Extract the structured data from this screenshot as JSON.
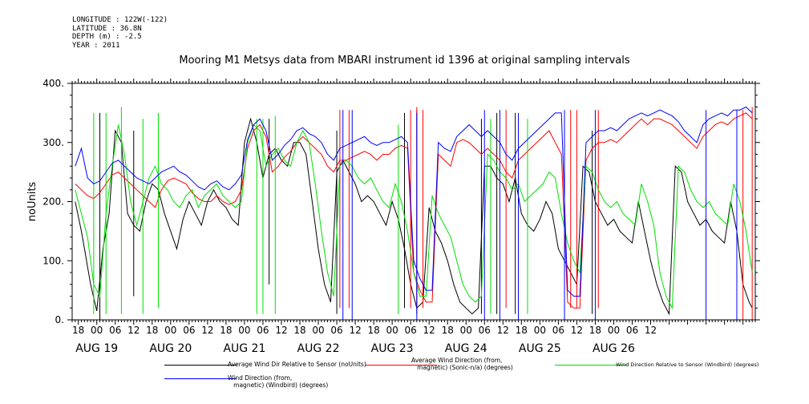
{
  "meta": {
    "longitude": "LONGITUDE : 122W(-122)",
    "latitude": "LATITUDE : 36.8N",
    "depth": "DEPTH (m) : -2.5",
    "year": "YEAR : 2011"
  },
  "chart_data": {
    "type": "line",
    "title": "Mooring M1 Metsys data from MBARI instrument id 1396 at original sampling intervals",
    "ylabel": "noUnits",
    "xlabel": "",
    "ylim": [
      0,
      400
    ],
    "yticks": [
      "0.",
      "100.",
      "200.",
      "300.",
      "400."
    ],
    "xlim_hours": [
      -8,
      214
    ],
    "hour_tick_labels": [
      "18",
      "00",
      "06",
      "12",
      "18",
      "00",
      "06",
      "12",
      "18",
      "00",
      "06",
      "12",
      "18",
      "00",
      "06",
      "12",
      "18",
      "00",
      "06",
      "12",
      "18",
      "00",
      "06",
      "12",
      "18",
      "00",
      "06",
      "12",
      "18",
      "00",
      "06",
      "12"
    ],
    "day_labels": [
      {
        "label": "AUG 19",
        "hour": 0
      },
      {
        "label": "AUG 20",
        "hour": 24
      },
      {
        "label": "AUG 21",
        "hour": 48
      },
      {
        "label": "AUG 22",
        "hour": 72
      },
      {
        "label": "AUG 23",
        "hour": 96
      },
      {
        "label": "AUG 24",
        "hour": 120
      },
      {
        "label": "AUG 25",
        "hour": 144
      },
      {
        "label": "AUG 26",
        "hour": 168
      }
    ],
    "series": [
      {
        "name": "Average Wind Dir Relative to Sensor (noUnits)",
        "color": "#000000",
        "x": [
          -7,
          -5,
          -4,
          -2,
          0,
          2,
          4,
          6,
          8,
          10,
          12,
          14,
          16,
          18,
          20,
          22,
          24,
          26,
          28,
          30,
          32,
          34,
          36,
          38,
          40,
          42,
          44,
          46,
          48,
          50,
          52,
          54,
          56,
          58,
          60,
          62,
          64,
          66,
          68,
          70,
          72,
          74,
          76,
          78,
          80,
          82,
          84,
          86,
          88,
          90,
          92,
          94,
          96,
          98,
          100,
          102,
          104,
          106,
          108,
          110,
          112,
          114,
          116,
          118,
          120,
          122,
          124,
          126,
          128,
          130,
          132,
          134,
          136,
          138,
          140,
          142,
          144,
          146,
          148,
          150,
          152,
          154,
          156,
          158,
          160,
          162,
          164,
          166,
          168,
          170,
          172,
          174,
          176,
          178,
          180,
          182,
          184,
          186,
          188,
          190,
          192,
          194,
          196,
          198,
          200,
          202,
          204,
          206,
          208,
          210,
          212,
          213
        ],
        "y": [
          200,
          150,
          120,
          60,
          15,
          120,
          180,
          320,
          300,
          180,
          160,
          150,
          200,
          230,
          220,
          180,
          150,
          120,
          170,
          200,
          180,
          160,
          200,
          220,
          200,
          190,
          170,
          160,
          300,
          340,
          300,
          240,
          280,
          290,
          270,
          260,
          300,
          300,
          280,
          200,
          120,
          60,
          30,
          250,
          270,
          250,
          230,
          200,
          210,
          200,
          180,
          160,
          200,
          170,
          120,
          60,
          20,
          30,
          190,
          150,
          130,
          100,
          60,
          30,
          20,
          10,
          20,
          260,
          260,
          240,
          230,
          200,
          240,
          180,
          160,
          150,
          170,
          200,
          180,
          120,
          100,
          80,
          60,
          260,
          250,
          200,
          180,
          160,
          170,
          150,
          140,
          130,
          200,
          150,
          100,
          60,
          30,
          10,
          260,
          250,
          200,
          180,
          160,
          170,
          150,
          140,
          130,
          200,
          150,
          60,
          30,
          20
        ],
        "spikes": [
          {
            "x": 1,
            "y0": 0,
            "y1": 350
          },
          {
            "x": 12,
            "y0": 40,
            "y1": 320
          },
          {
            "x": 56,
            "y0": 60,
            "y1": 340
          },
          {
            "x": 78,
            "y0": 10,
            "y1": 320
          },
          {
            "x": 100,
            "y0": 20,
            "y1": 350
          },
          {
            "x": 104,
            "y0": 10,
            "y1": 355
          },
          {
            "x": 125,
            "y0": 10,
            "y1": 340
          },
          {
            "x": 130,
            "y0": 10,
            "y1": 350
          },
          {
            "x": 136,
            "y0": 10,
            "y1": 350
          },
          {
            "x": 161,
            "y0": 10,
            "y1": 320
          }
        ]
      },
      {
        "name": "Average Wind Direction (from, magnetic) (Sonic-n/a) (degrees)",
        "color": "#ff0000",
        "x": [
          -7,
          -5,
          -3,
          -1,
          1,
          3,
          5,
          7,
          9,
          11,
          13,
          15,
          17,
          19,
          21,
          23,
          25,
          27,
          29,
          31,
          33,
          35,
          37,
          39,
          41,
          43,
          45,
          47,
          49,
          51,
          53,
          55,
          57,
          59,
          61,
          63,
          65,
          67,
          69,
          71,
          73,
          75,
          77,
          79,
          81,
          83,
          85,
          87,
          89,
          91,
          93,
          95,
          97,
          99,
          101,
          103,
          105,
          107,
          109,
          111,
          113,
          115,
          117,
          119,
          121,
          123,
          125,
          127,
          129,
          131,
          133,
          135,
          137,
          139,
          141,
          143,
          145,
          147,
          149,
          151,
          153,
          155,
          157,
          159,
          161,
          163,
          165,
          167,
          169,
          171,
          173,
          175,
          177,
          179,
          181,
          183,
          185,
          187,
          189,
          191,
          193,
          195,
          197,
          199,
          201,
          203,
          205,
          207,
          209,
          211,
          213
        ],
        "y": [
          230,
          220,
          210,
          205,
          215,
          230,
          245,
          250,
          240,
          230,
          220,
          210,
          200,
          190,
          220,
          235,
          240,
          235,
          230,
          215,
          205,
          200,
          200,
          210,
          200,
          195,
          200,
          220,
          290,
          320,
          330,
          310,
          250,
          260,
          275,
          285,
          300,
          310,
          300,
          290,
          280,
          260,
          250,
          270,
          270,
          275,
          280,
          285,
          280,
          270,
          280,
          280,
          290,
          295,
          290,
          80,
          50,
          30,
          30,
          280,
          270,
          260,
          300,
          305,
          300,
          290,
          280,
          290,
          280,
          270,
          250,
          240,
          270,
          280,
          290,
          300,
          310,
          320,
          300,
          280,
          30,
          20,
          20,
          270,
          290,
          300,
          300,
          305,
          300,
          310,
          320,
          330,
          340,
          330,
          340,
          340,
          335,
          330,
          320,
          310,
          300,
          290,
          310,
          320,
          330,
          335,
          330,
          340,
          345,
          350,
          340
        ],
        "spikes": [
          {
            "x": 79,
            "y0": 20,
            "y1": 355
          },
          {
            "x": 82,
            "y0": 20,
            "y1": 355
          },
          {
            "x": 102,
            "y0": 20,
            "y1": 355
          },
          {
            "x": 104,
            "y0": 20,
            "y1": 360
          },
          {
            "x": 106,
            "y0": 20,
            "y1": 355
          },
          {
            "x": 133,
            "y0": 20,
            "y1": 355
          },
          {
            "x": 154,
            "y0": 20,
            "y1": 355
          },
          {
            "x": 156,
            "y0": 20,
            "y1": 355
          },
          {
            "x": 163,
            "y0": 20,
            "y1": 355
          },
          {
            "x": 210,
            "y0": 0,
            "y1": 355
          },
          {
            "x": 213,
            "y0": 0,
            "y1": 360
          }
        ]
      },
      {
        "name": "Wind Direction Relative to Sensor (Windbird) (degrees)",
        "color": "#00e000",
        "x": [
          -7,
          -5,
          -3,
          -1,
          1,
          3,
          5,
          7,
          9,
          11,
          13,
          15,
          17,
          19,
          21,
          23,
          25,
          27,
          29,
          31,
          33,
          35,
          37,
          39,
          41,
          43,
          45,
          47,
          49,
          51,
          53,
          55,
          57,
          59,
          61,
          63,
          65,
          67,
          69,
          71,
          73,
          75,
          77,
          79,
          81,
          83,
          85,
          87,
          89,
          91,
          93,
          95,
          97,
          99,
          101,
          103,
          105,
          107,
          109,
          111,
          113,
          115,
          117,
          119,
          121,
          123,
          125,
          127,
          129,
          131,
          133,
          135,
          137,
          139,
          141,
          143,
          145,
          147,
          149,
          151,
          153,
          155,
          157,
          159,
          161,
          163,
          165,
          167,
          169,
          171,
          173,
          175,
          177,
          179,
          181,
          183,
          185,
          187,
          189,
          191,
          193,
          195,
          197,
          199,
          201,
          203,
          205,
          207,
          209,
          211,
          213
        ],
        "y": [
          220,
          180,
          140,
          60,
          40,
          180,
          260,
          330,
          280,
          200,
          160,
          200,
          240,
          260,
          230,
          220,
          200,
          190,
          210,
          220,
          190,
          210,
          220,
          230,
          210,
          200,
          190,
          200,
          300,
          330,
          320,
          260,
          280,
          290,
          270,
          260,
          300,
          320,
          300,
          230,
          150,
          80,
          40,
          260,
          270,
          260,
          240,
          230,
          240,
          220,
          200,
          190,
          230,
          200,
          150,
          80,
          40,
          40,
          210,
          180,
          160,
          140,
          100,
          60,
          40,
          30,
          40,
          280,
          270,
          250,
          240,
          220,
          230,
          200,
          210,
          220,
          230,
          250,
          240,
          180,
          130,
          100,
          80,
          260,
          250,
          220,
          200,
          190,
          200,
          180,
          170,
          160,
          230,
          200,
          160,
          80,
          40,
          20,
          260,
          250,
          220,
          200,
          190,
          200,
          180,
          170,
          160,
          230,
          200,
          150,
          80
        ],
        "spikes": [
          {
            "x": -1,
            "y0": 10,
            "y1": 350
          },
          {
            "x": 3,
            "y0": 10,
            "y1": 350
          },
          {
            "x": 8,
            "y0": 10,
            "y1": 360
          },
          {
            "x": 15,
            "y0": 10,
            "y1": 340
          },
          {
            "x": 20,
            "y0": 20,
            "y1": 350
          },
          {
            "x": 52,
            "y0": 10,
            "y1": 340
          },
          {
            "x": 54,
            "y0": 10,
            "y1": 340
          },
          {
            "x": 58,
            "y0": 10,
            "y1": 345
          },
          {
            "x": 98,
            "y0": 10,
            "y1": 330
          },
          {
            "x": 128,
            "y0": 10,
            "y1": 340
          },
          {
            "x": 140,
            "y0": 10,
            "y1": 340
          }
        ]
      },
      {
        "name": "Wind Direction (from, magnetic) (Windbird) (degrees)",
        "color": "#0000ff",
        "x": [
          -7,
          -5,
          -3,
          -1,
          1,
          3,
          5,
          7,
          9,
          11,
          13,
          15,
          17,
          19,
          21,
          23,
          25,
          27,
          29,
          31,
          33,
          35,
          37,
          39,
          41,
          43,
          45,
          47,
          49,
          51,
          53,
          55,
          57,
          59,
          61,
          63,
          65,
          67,
          69,
          71,
          73,
          75,
          77,
          79,
          81,
          83,
          85,
          87,
          89,
          91,
          93,
          95,
          97,
          99,
          101,
          103,
          105,
          107,
          109,
          111,
          113,
          115,
          117,
          119,
          121,
          123,
          125,
          127,
          129,
          131,
          133,
          135,
          137,
          139,
          141,
          143,
          145,
          147,
          149,
          151,
          153,
          155,
          157,
          159,
          161,
          163,
          165,
          167,
          169,
          171,
          173,
          175,
          177,
          179,
          181,
          183,
          185,
          187,
          189,
          191,
          193,
          195,
          197,
          199,
          201,
          203,
          205,
          207,
          209,
          211,
          213
        ],
        "y": [
          260,
          290,
          240,
          230,
          235,
          250,
          265,
          270,
          260,
          250,
          240,
          235,
          230,
          240,
          250,
          255,
          260,
          250,
          245,
          235,
          225,
          220,
          230,
          235,
          225,
          220,
          230,
          245,
          305,
          330,
          340,
          320,
          270,
          280,
          295,
          305,
          320,
          325,
          315,
          310,
          300,
          280,
          270,
          290,
          295,
          300,
          305,
          310,
          300,
          295,
          300,
          300,
          305,
          310,
          300,
          100,
          70,
          50,
          50,
          300,
          290,
          285,
          310,
          320,
          330,
          320,
          310,
          320,
          310,
          300,
          280,
          270,
          290,
          300,
          310,
          320,
          330,
          340,
          350,
          350,
          50,
          40,
          40,
          300,
          310,
          320,
          320,
          325,
          320,
          330,
          340,
          345,
          350,
          345,
          350,
          355,
          350,
          345,
          335,
          320,
          310,
          300,
          330,
          340,
          345,
          350,
          345,
          355,
          355,
          360,
          350
        ],
        "spikes": [
          {
            "x": 80,
            "y0": 0,
            "y1": 355
          },
          {
            "x": 83,
            "y0": 0,
            "y1": 355
          },
          {
            "x": 104,
            "y0": 0,
            "y1": 350
          },
          {
            "x": 126,
            "y0": 0,
            "y1": 355
          },
          {
            "x": 131,
            "y0": 0,
            "y1": 355
          },
          {
            "x": 137,
            "y0": 0,
            "y1": 350
          },
          {
            "x": 152,
            "y0": 0,
            "y1": 355
          },
          {
            "x": 162,
            "y0": 0,
            "y1": 355
          },
          {
            "x": 198,
            "y0": 0,
            "y1": 355
          },
          {
            "x": 208,
            "y0": 0,
            "y1": 355
          }
        ]
      }
    ],
    "legend": [
      {
        "label": "Average Wind Dir Relative to Sensor (noUnits)",
        "color": "#000000"
      },
      {
        "label": "Average Wind Direction (from,\n   magnetic) (Sonic-n/a) (degrees)",
        "color": "#ff0000"
      },
      {
        "label": "Wind Direction Relative to Sensor (Windbird) (degrees)",
        "color": "#00e000"
      },
      {
        "label": "Wind Direction (from,\n   magnetic) (Windbird) (degrees)",
        "color": "#0000ff"
      }
    ]
  }
}
